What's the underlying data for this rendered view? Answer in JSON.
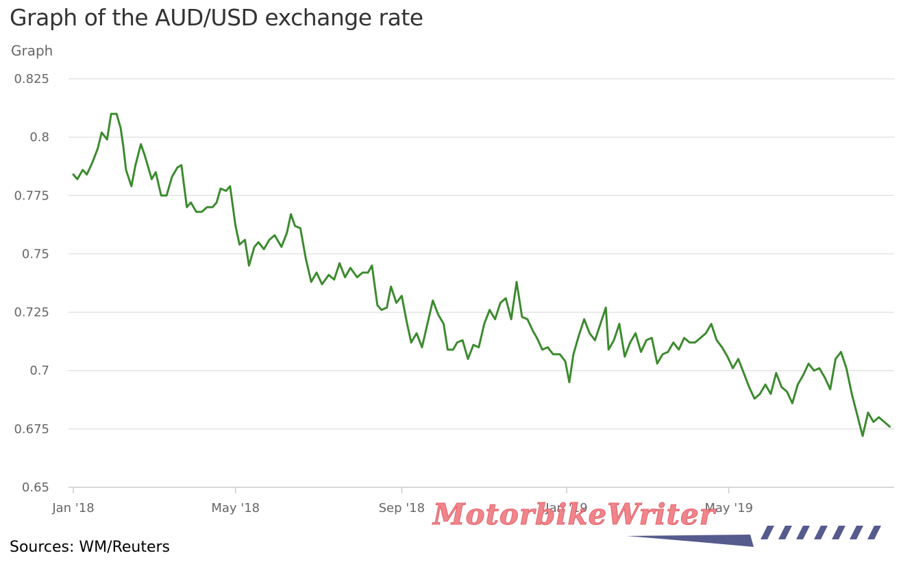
{
  "title": "Graph of the AUD/USD exchange rate",
  "subtitle": "Graph",
  "source": "Sources: WM/Reuters",
  "watermark": "MotorbikeWriter",
  "colors": {
    "line": "#3b8a2e",
    "grid": "#e3e3e3",
    "axis": "#cccccc",
    "text": "#666666",
    "watermark": "#f07f86",
    "watermark_stripes": "#565b8e"
  },
  "chart_data": {
    "type": "line",
    "x_axis": {
      "ticks": [
        "Jan '18",
        "May '18",
        "Sep '18",
        "Jan '19",
        "May '19"
      ]
    },
    "y_axis": {
      "ticks": [
        "0.825",
        "0.8",
        "0.775",
        "0.75",
        "0.725",
        "0.7",
        "0.675",
        "0.65"
      ],
      "ylim": [
        0.65,
        0.825
      ]
    },
    "grid": "horizontal",
    "series": [
      {
        "x": [
          "2018-01-01",
          "2018-01-04",
          "2018-01-08",
          "2018-01-11",
          "2018-01-15",
          "2018-01-19",
          "2018-01-22",
          "2018-01-26",
          "2018-01-29",
          "2018-02-02",
          "2018-02-05",
          "2018-02-07",
          "2018-02-09",
          "2018-02-13",
          "2018-02-16",
          "2018-02-20",
          "2018-02-23",
          "2018-02-28",
          "2018-03-03",
          "2018-03-07",
          "2018-03-11",
          "2018-03-15",
          "2018-03-19",
          "2018-03-22",
          "2018-03-26",
          "2018-03-29",
          "2018-04-02",
          "2018-04-06",
          "2018-04-10",
          "2018-04-14",
          "2018-04-17",
          "2018-04-20",
          "2018-04-24",
          "2018-04-27",
          "2018-05-01",
          "2018-05-04",
          "2018-05-08",
          "2018-05-11",
          "2018-05-15",
          "2018-05-18",
          "2018-05-22",
          "2018-05-26",
          "2018-05-30",
          "2018-06-04",
          "2018-06-08",
          "2018-06-11",
          "2018-06-14",
          "2018-06-18",
          "2018-06-22",
          "2018-06-26",
          "2018-06-30",
          "2018-07-04",
          "2018-07-09",
          "2018-07-13",
          "2018-07-17",
          "2018-07-21",
          "2018-07-25",
          "2018-07-30",
          "2018-08-03",
          "2018-08-07",
          "2018-08-10",
          "2018-08-14",
          "2018-08-17",
          "2018-08-21",
          "2018-08-24",
          "2018-08-28",
          "2018-09-01",
          "2018-09-05",
          "2018-09-08",
          "2018-09-12",
          "2018-09-16",
          "2018-09-20",
          "2018-09-24",
          "2018-09-28",
          "2018-10-02",
          "2018-10-05",
          "2018-10-09",
          "2018-10-12",
          "2018-10-16",
          "2018-10-20",
          "2018-10-24",
          "2018-10-28",
          "2018-11-01",
          "2018-11-05",
          "2018-11-09",
          "2018-11-13",
          "2018-11-17",
          "2018-11-21",
          "2018-11-25",
          "2018-11-29",
          "2018-12-03",
          "2018-12-07",
          "2018-12-10",
          "2018-12-14",
          "2018-12-18",
          "2018-12-22",
          "2018-12-27",
          "2018-12-31",
          "2019-01-03",
          "2019-01-06",
          "2019-01-10",
          "2019-01-14",
          "2019-01-18",
          "2019-01-22",
          "2019-01-26",
          "2019-01-30",
          "2019-02-01",
          "2019-02-05",
          "2019-02-09",
          "2019-02-13",
          "2019-02-17",
          "2019-02-21",
          "2019-02-25",
          "2019-03-01",
          "2019-03-05",
          "2019-03-09",
          "2019-03-13",
          "2019-03-17",
          "2019-03-21",
          "2019-03-25",
          "2019-03-29",
          "2019-04-02",
          "2019-04-06",
          "2019-04-10",
          "2019-04-14",
          "2019-04-18",
          "2019-04-22",
          "2019-04-26",
          "2019-04-30",
          "2019-05-04",
          "2019-05-08",
          "2019-05-12",
          "2019-05-16",
          "2019-05-20",
          "2019-05-24",
          "2019-05-28",
          "2019-06-01",
          "2019-06-05",
          "2019-06-09",
          "2019-06-13",
          "2019-06-17",
          "2019-06-21",
          "2019-06-25",
          "2019-06-29",
          "2019-07-03",
          "2019-07-07",
          "2019-07-11",
          "2019-07-15",
          "2019-07-19",
          "2019-07-23",
          "2019-07-27",
          "2019-07-31",
          "2019-08-04",
          "2019-08-08",
          "2019-08-12",
          "2019-08-16",
          "2019-08-20",
          "2019-08-24",
          "2019-08-28"
        ],
        "y": [
          0.784,
          0.782,
          0.786,
          0.784,
          0.789,
          0.795,
          0.802,
          0.799,
          0.81,
          0.81,
          0.804,
          0.796,
          0.786,
          0.779,
          0.788,
          0.797,
          0.792,
          0.782,
          0.785,
          0.775,
          0.775,
          0.783,
          0.787,
          0.788,
          0.77,
          0.772,
          0.768,
          0.768,
          0.77,
          0.77,
          0.772,
          0.778,
          0.777,
          0.779,
          0.762,
          0.754,
          0.756,
          0.745,
          0.753,
          0.755,
          0.752,
          0.756,
          0.758,
          0.753,
          0.759,
          0.767,
          0.762,
          0.761,
          0.748,
          0.738,
          0.742,
          0.737,
          0.741,
          0.739,
          0.746,
          0.74,
          0.744,
          0.74,
          0.742,
          0.742,
          0.745,
          0.728,
          0.726,
          0.727,
          0.736,
          0.729,
          0.732,
          0.72,
          0.712,
          0.716,
          0.71,
          0.72,
          0.73,
          0.724,
          0.72,
          0.709,
          0.709,
          0.712,
          0.713,
          0.705,
          0.711,
          0.71,
          0.72,
          0.726,
          0.722,
          0.729,
          0.731,
          0.722,
          0.738,
          0.723,
          0.722,
          0.717,
          0.714,
          0.709,
          0.71,
          0.707,
          0.707,
          0.704,
          0.695,
          0.707,
          0.715,
          0.722,
          0.716,
          0.713,
          0.72,
          0.727,
          0.709,
          0.713,
          0.72,
          0.706,
          0.712,
          0.716,
          0.708,
          0.713,
          0.714,
          0.703,
          0.707,
          0.708,
          0.712,
          0.709,
          0.714,
          0.712,
          0.712,
          0.714,
          0.716,
          0.72,
          0.713,
          0.71,
          0.706,
          0.701,
          0.705,
          0.699,
          0.693,
          0.688,
          0.69,
          0.694,
          0.69,
          0.699,
          0.693,
          0.691,
          0.686,
          0.694,
          0.698,
          0.703,
          0.7,
          0.701,
          0.697,
          0.692,
          0.705,
          0.708,
          0.701,
          0.69,
          0.681,
          0.672,
          0.682,
          0.678,
          0.68,
          0.678,
          0.676
        ]
      }
    ]
  }
}
